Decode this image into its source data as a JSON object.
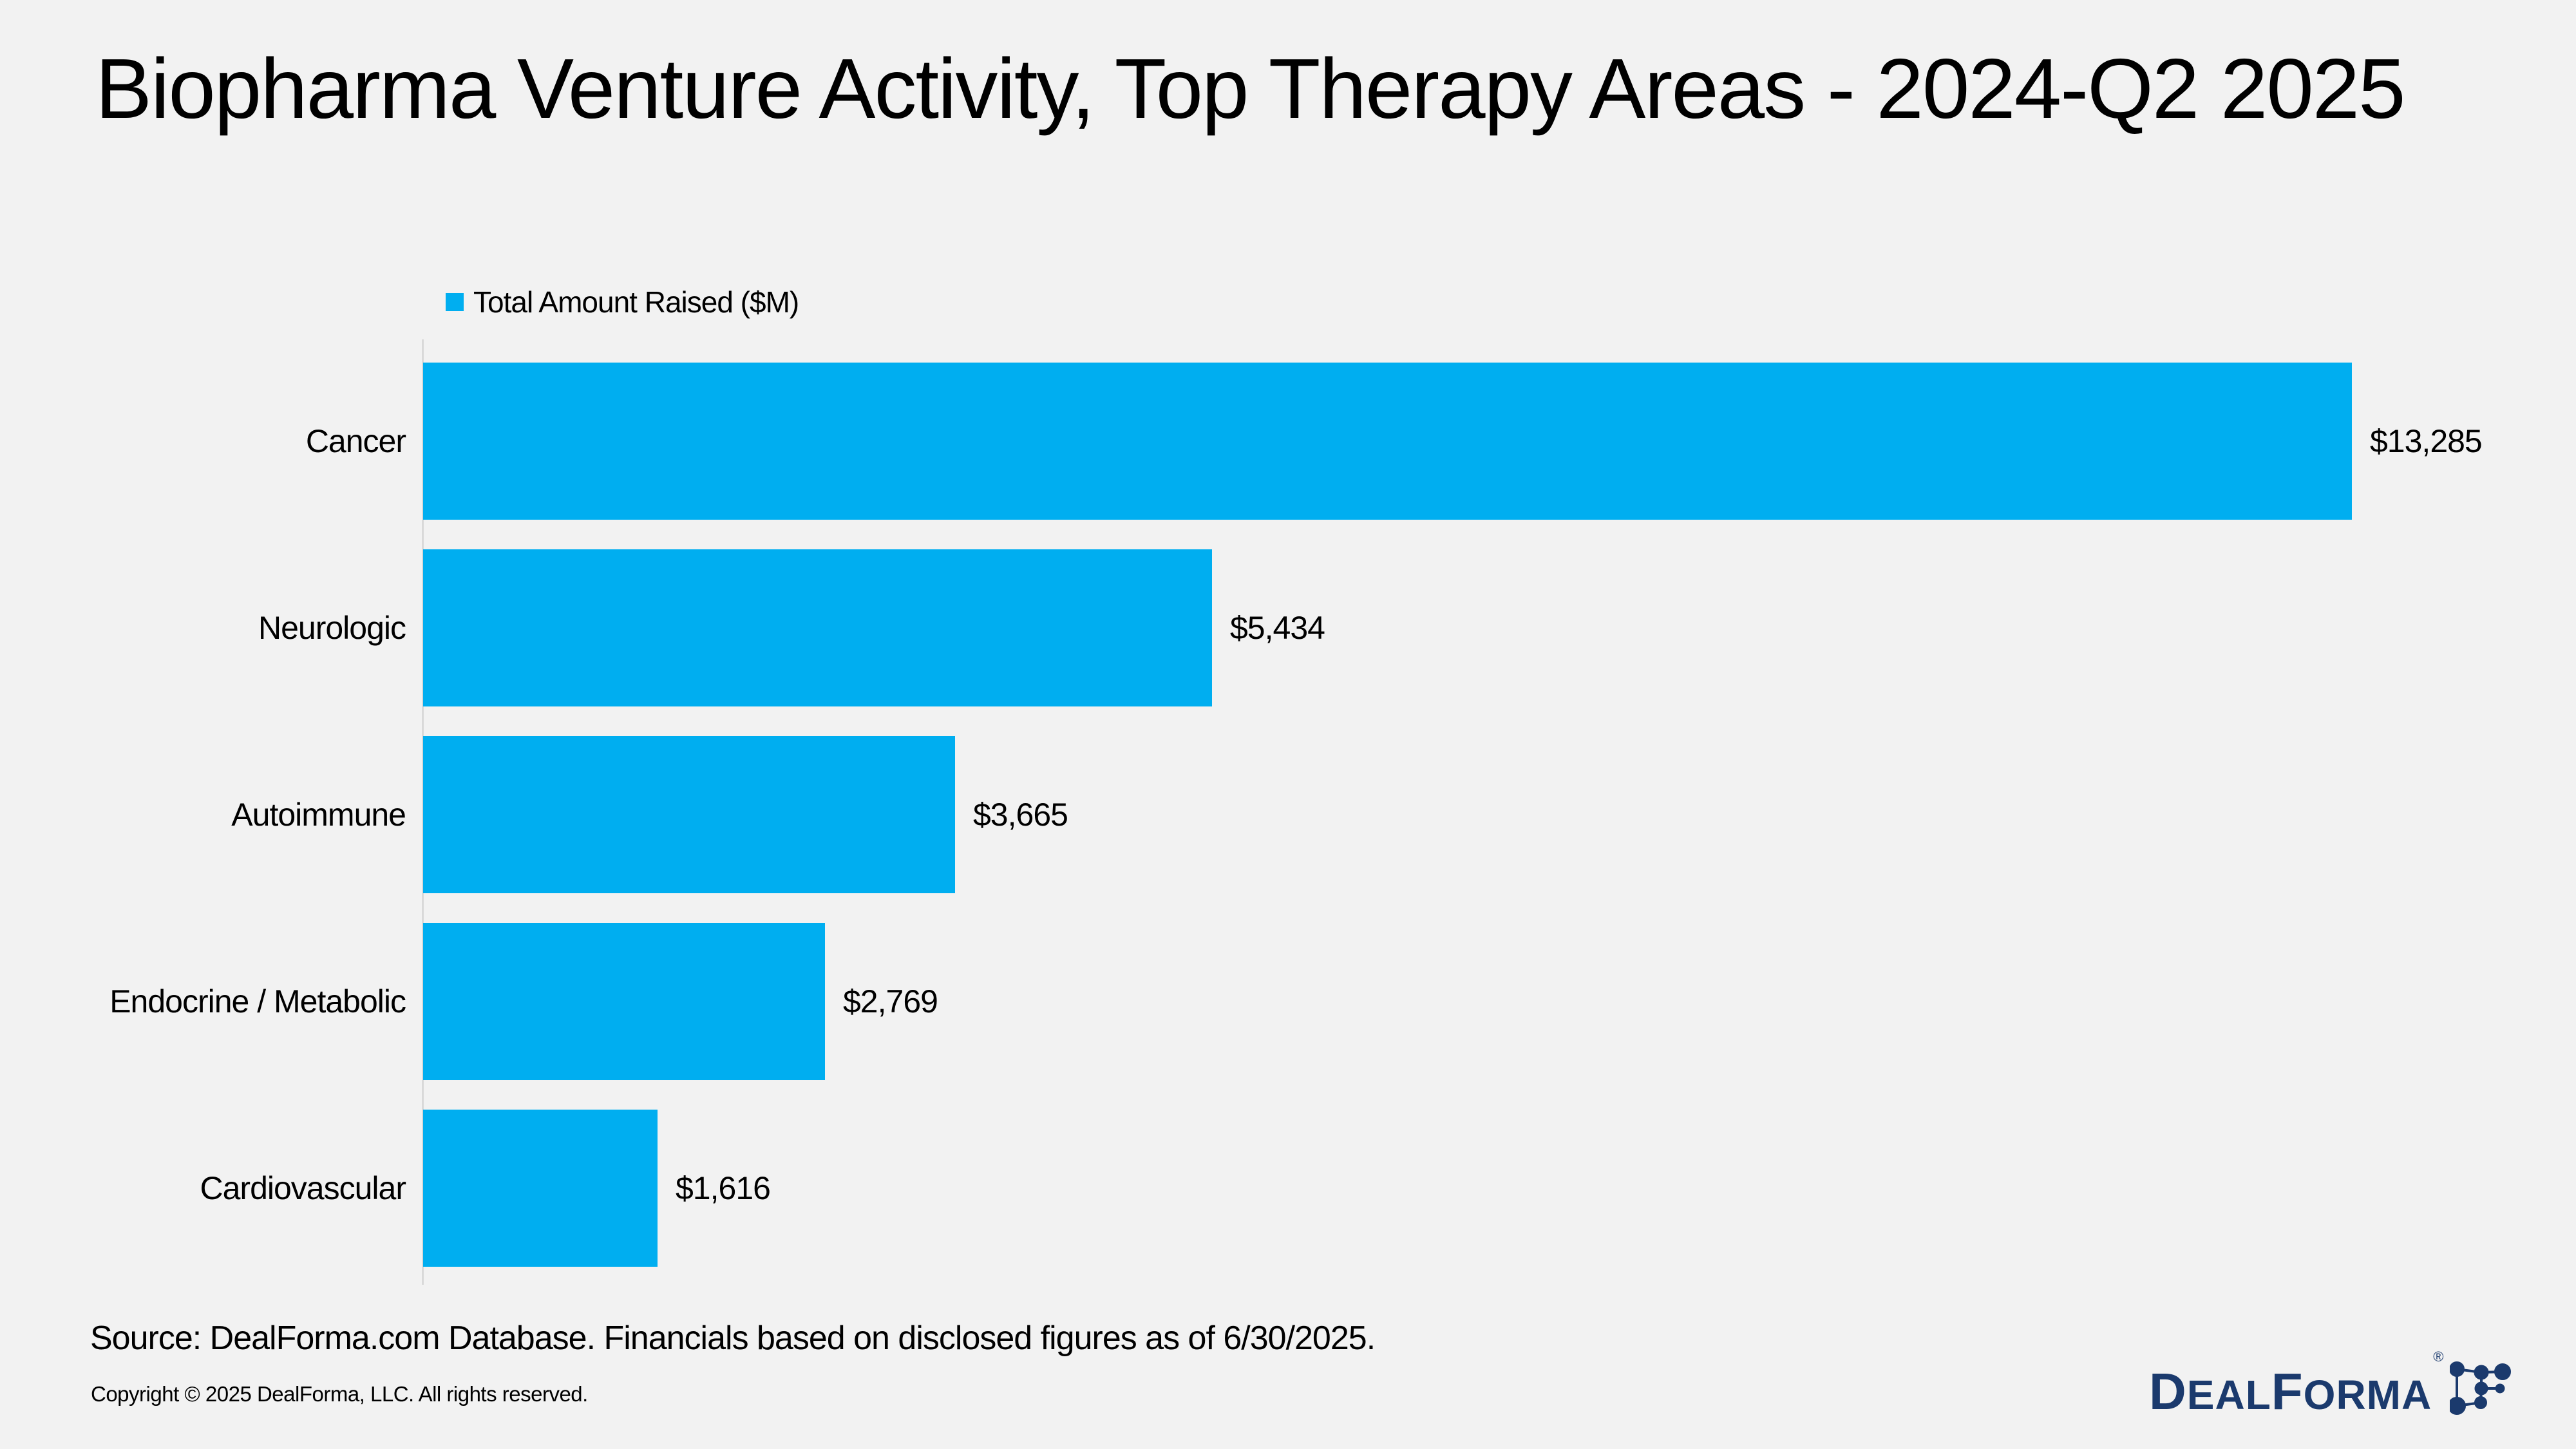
{
  "title": "Biopharma Venture Activity, Top Therapy Areas - 2024-Q2 2025",
  "legend": {
    "label": "Total Amount Raised ($M)"
  },
  "chart_data": {
    "type": "bar",
    "orientation": "horizontal",
    "title": "Biopharma Venture Activity, Top Therapy Areas - 2024-Q2 2025",
    "categories": [
      "Cancer",
      "Neurologic",
      "Autoimmune",
      "Endocrine / Metabolic",
      "Cardiovascular"
    ],
    "series": [
      {
        "name": "Total Amount Raised ($M)",
        "values": [
          13285,
          5434,
          3665,
          2769,
          1616
        ]
      }
    ],
    "value_label_format": "$#,##0",
    "value_labels": [
      "$13,285",
      "$5,434",
      "$3,665",
      "$2,769",
      "$1,616"
    ],
    "xlabel": "",
    "ylabel": "",
    "xlim": [
      0,
      13285
    ],
    "grid": false,
    "legend_position": "top-left",
    "bar_color": "#00AEF0"
  },
  "footer": {
    "source": "Source: DealForma.com Database. Financials based on disclosed figures as of 6/30/2025.",
    "copyright": "Copyright © 2025 DealForma, LLC. All rights reserved."
  },
  "logo": {
    "text_d": "D",
    "text_eal": "EAL",
    "text_f": "F",
    "text_orma": "ORMA",
    "registered": "®",
    "color": "#1B3A6D"
  },
  "colors": {
    "background": "#F2F2F2",
    "accent": "#00AEF0",
    "axis_line": "#D9D9D9",
    "text": "#000000",
    "logo_navy": "#1B3A6D"
  }
}
